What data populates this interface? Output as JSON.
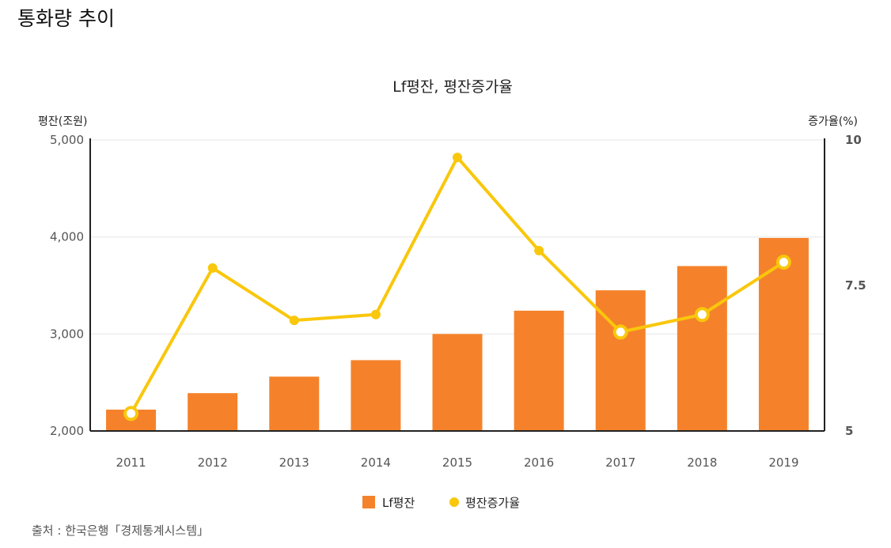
{
  "page": {
    "title": "통화량 추이",
    "source": "출처 : 한국은행「경제통계시스템」"
  },
  "colors": {
    "bar": "#F5822A",
    "line": "#F9C70C",
    "axis": "#222222",
    "grid": "#eeeeee"
  },
  "chart_data": {
    "type": "bar",
    "title": "Lf평잔, 평잔증가율",
    "categories": [
      "2011",
      "2012",
      "2013",
      "2014",
      "2015",
      "2016",
      "2017",
      "2018",
      "2019"
    ],
    "series": [
      {
        "name": "Lf평잔",
        "type": "bar",
        "axis": "left",
        "values": [
          2220,
          2390,
          2560,
          2730,
          3000,
          3240,
          3450,
          3700,
          3990
        ]
      },
      {
        "name": "평잔증가율",
        "type": "line",
        "axis": "right",
        "values": [
          5.3,
          7.8,
          6.9,
          7.0,
          9.7,
          8.1,
          6.7,
          7.0,
          7.9
        ]
      }
    ],
    "y_left": {
      "label": "평잔(조원)",
      "ylim": [
        2000,
        5000
      ],
      "ticks": [
        2000,
        3000,
        4000,
        5000
      ],
      "tick_labels": [
        "2,000",
        "3,000",
        "4,000",
        "5,000"
      ]
    },
    "y_right": {
      "label": "증가율(%)",
      "ylim": [
        5,
        10
      ],
      "ticks": [
        5,
        7.5,
        10
      ],
      "tick_labels": [
        "5",
        "7.5",
        "10"
      ]
    },
    "grid": true,
    "legend": "bottom-center"
  }
}
